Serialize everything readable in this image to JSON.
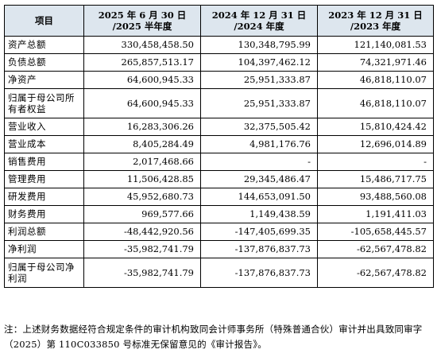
{
  "table": {
    "headers": [
      {
        "line1": "项目",
        "line2": ""
      },
      {
        "line1": "2025 年 6 月 30 日",
        "line2": "/2025 半年度"
      },
      {
        "line1": "2024 年 12 月 31 日",
        "line2": "/2024 年度"
      },
      {
        "line1": "2023 年 12 月 31 日",
        "line2": "/2023 年度"
      }
    ],
    "rows": [
      {
        "label": "资产总额",
        "v2025": "330,458,458.50",
        "v2024": "130,348,795.99",
        "v2023": "121,140,081.53"
      },
      {
        "label": "负债总额",
        "v2025": "265,857,513.17",
        "v2024": "104,397,462.12",
        "v2023": "74,321,971.46"
      },
      {
        "label": "净资产",
        "v2025": "64,600,945.33",
        "v2024": "25,951,333.87",
        "v2023": "46,818,110.07"
      },
      {
        "label": "归属于母公司所有者权益",
        "v2025": "64,600,945.33",
        "v2024": "25,951,333.87",
        "v2023": "46,818,110.07"
      },
      {
        "label": "营业收入",
        "v2025": "16,283,306.26",
        "v2024": "32,375,505.42",
        "v2023": "15,810,424.42"
      },
      {
        "label": "营业成本",
        "v2025": "8,405,284.49",
        "v2024": "4,981,176.76",
        "v2023": "12,696,014.89"
      },
      {
        "label": "销售费用",
        "v2025": "2,017,468.66",
        "v2024": "-",
        "v2023": "-"
      },
      {
        "label": "管理费用",
        "v2025": "11,506,428.85",
        "v2024": "29,345,486.47",
        "v2023": "15,486,717.75"
      },
      {
        "label": "研发费用",
        "v2025": "45,952,680.73",
        "v2024": "144,653,091.50",
        "v2023": "93,488,560.08"
      },
      {
        "label": "财务费用",
        "v2025": "969,577.66",
        "v2024": "1,149,438.59",
        "v2023": "1,191,411.03"
      },
      {
        "label": "利润总额",
        "v2025": "-48,442,920.56",
        "v2024": "-147,405,699.35",
        "v2023": "-105,658,445.57"
      },
      {
        "label": "净利润",
        "v2025": "-35,982,741.79",
        "v2024": "-137,876,837.73",
        "v2023": "-62,567,478.82"
      },
      {
        "label": "归属于母公司净利润",
        "v2025": "-35,982,741.79",
        "v2024": "-137,876,837.73",
        "v2023": "-62,567,478.82"
      }
    ]
  },
  "note": "注：上述财务数据经符合规定条件的审计机构致同会计师事务所（特殊普通合伙）审计并出具致同审字（2025）第 110C033850 号标准无保留意见的《审计报告》。"
}
